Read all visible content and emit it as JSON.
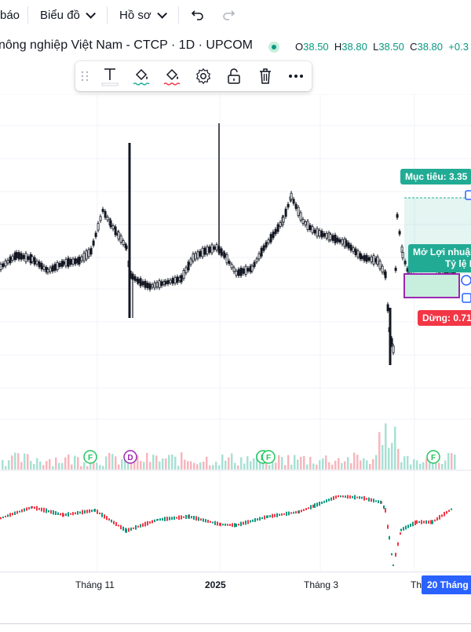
{
  "toolbar": {
    "partial_left": "báo",
    "chart_label": "Biểu đồ",
    "profile_label": "Hồ sơ",
    "undo_icon": "undo-icon",
    "redo_icon": "redo-icon"
  },
  "symbol": {
    "title": "nông nghiệp Việt Nam - CTCP · 1D · UPCOM",
    "status": "live",
    "ohlc": {
      "o_label": "O",
      "o": "38.50",
      "h_label": "H",
      "h": "38.80",
      "l_label": "L",
      "l": "38.50",
      "c_label": "C",
      "c": "38.80",
      "change": "+0.3"
    }
  },
  "float_toolbar": {
    "items": [
      "drag-handle-icon",
      "text-icon",
      "fill-color-icon",
      "border-color-icon",
      "settings-icon",
      "unlock-icon",
      "trash-icon",
      "more-icon"
    ]
  },
  "position": {
    "target_label": "Mục tiêu: 3.35",
    "open_pnl_label": "Mở Lợi nhuận",
    "ratio_label": "Tỷ lệ R",
    "stop_label": "Dừng: 0.71"
  },
  "events": [
    "F",
    "D",
    "F",
    "F",
    "F"
  ],
  "time_axis": {
    "ticks": [
      "Tháng 11",
      "2025",
      "Tháng 3",
      "Th"
    ],
    "current_date": "20 Tháng"
  },
  "colors": {
    "up": "#089981",
    "down": "#f23645",
    "accent": "#2962ff",
    "target_green": "#22ab94",
    "stop_red": "#f23645",
    "event_green": "#22c55e",
    "event_purple": "#9c27b0"
  }
}
